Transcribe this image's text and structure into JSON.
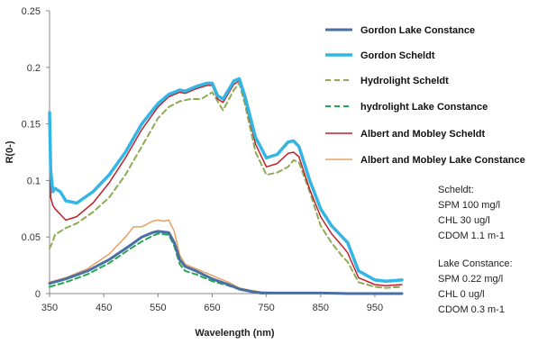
{
  "chart_data": {
    "type": "line",
    "xlabel": "Wavelength (nm)",
    "ylabel": "R(0-)",
    "xlim": [
      350,
      1000
    ],
    "ylim": [
      0,
      0.25
    ],
    "x_ticks": [
      "350",
      "450",
      "550",
      "650",
      "750",
      "850",
      "950"
    ],
    "y_ticks": [
      "0",
      "0.05",
      "0.1",
      "0.15",
      "0.2",
      "0.25"
    ],
    "grid": false,
    "legend_position": "right",
    "series": [
      {
        "name": "Gordon Lake Constance",
        "color": "#4a6fa5",
        "style": "solid",
        "width": 3,
        "x": [
          350,
          380,
          420,
          460,
          500,
          520,
          540,
          550,
          570,
          580,
          590,
          600,
          620,
          650,
          680,
          700,
          720,
          740,
          760,
          780,
          800,
          850,
          900,
          950,
          1000
        ],
        "y": [
          0.009,
          0.013,
          0.02,
          0.03,
          0.043,
          0.05,
          0.054,
          0.055,
          0.054,
          0.045,
          0.03,
          0.024,
          0.02,
          0.013,
          0.008,
          0.004,
          0.002,
          0.0005,
          0.0005,
          0.0005,
          0.0005,
          0.0005,
          0,
          0,
          0
        ]
      },
      {
        "name": "Gordon Scheldt",
        "color": "#33b5e5",
        "style": "solid",
        "width": 3.5,
        "x": [
          350,
          352,
          356,
          360,
          370,
          380,
          400,
          430,
          460,
          490,
          520,
          550,
          570,
          590,
          600,
          620,
          640,
          650,
          660,
          670,
          690,
          700,
          710,
          730,
          750,
          770,
          790,
          800,
          810,
          830,
          850,
          870,
          890,
          900,
          920,
          950,
          970,
          1000
        ],
        "y": [
          0.16,
          0.11,
          0.09,
          0.093,
          0.09,
          0.082,
          0.08,
          0.09,
          0.105,
          0.125,
          0.15,
          0.168,
          0.176,
          0.18,
          0.179,
          0.183,
          0.186,
          0.186,
          0.175,
          0.172,
          0.188,
          0.19,
          0.175,
          0.138,
          0.12,
          0.123,
          0.134,
          0.135,
          0.13,
          0.1,
          0.075,
          0.06,
          0.05,
          0.045,
          0.02,
          0.012,
          0.011,
          0.012
        ]
      },
      {
        "name": "Hydrolight Scheldt",
        "color": "#8faa55",
        "style": "dashed",
        "width": 2,
        "x": [
          350,
          355,
          360,
          380,
          400,
          430,
          460,
          490,
          520,
          550,
          570,
          590,
          610,
          630,
          650,
          660,
          670,
          690,
          700,
          710,
          730,
          750,
          770,
          790,
          800,
          810,
          830,
          850,
          870,
          890,
          900,
          920,
          950,
          970,
          1000
        ],
        "y": [
          0.04,
          0.045,
          0.052,
          0.058,
          0.062,
          0.072,
          0.085,
          0.105,
          0.13,
          0.155,
          0.165,
          0.17,
          0.172,
          0.172,
          0.178,
          0.17,
          0.162,
          0.18,
          0.186,
          0.168,
          0.125,
          0.105,
          0.107,
          0.112,
          0.118,
          0.116,
          0.09,
          0.06,
          0.045,
          0.033,
          0.028,
          0.01,
          0.006,
          0.005,
          0.006
        ]
      },
      {
        "name": "hydrolight Lake Constance",
        "color": "#22a84f",
        "style": "dashed",
        "width": 2,
        "x": [
          350,
          380,
          420,
          460,
          500,
          520,
          540,
          550,
          570,
          580,
          590,
          600,
          620,
          650,
          680,
          700,
          720,
          740,
          760,
          800,
          850,
          900,
          950,
          1000
        ],
        "y": [
          0.006,
          0.01,
          0.017,
          0.027,
          0.04,
          0.046,
          0.051,
          0.053,
          0.052,
          0.042,
          0.026,
          0.02,
          0.017,
          0.011,
          0.007,
          0.004,
          0.002,
          0.001,
          0.0005,
          0.0005,
          0.0005,
          0,
          0,
          0
        ]
      },
      {
        "name": "Albert and Mobley Scheldt",
        "color": "#c0202a",
        "style": "solid",
        "width": 1.5,
        "x": [
          350,
          352,
          356,
          360,
          370,
          380,
          400,
          430,
          460,
          490,
          520,
          550,
          570,
          590,
          600,
          620,
          640,
          650,
          660,
          670,
          690,
          700,
          710,
          730,
          750,
          770,
          790,
          800,
          810,
          830,
          850,
          870,
          890,
          900,
          920,
          950,
          970,
          1000
        ],
        "y": [
          0.155,
          0.085,
          0.078,
          0.075,
          0.07,
          0.065,
          0.068,
          0.08,
          0.098,
          0.12,
          0.145,
          0.165,
          0.174,
          0.178,
          0.177,
          0.181,
          0.184,
          0.184,
          0.172,
          0.169,
          0.185,
          0.188,
          0.172,
          0.132,
          0.112,
          0.115,
          0.124,
          0.125,
          0.121,
          0.092,
          0.068,
          0.053,
          0.042,
          0.036,
          0.014,
          0.008,
          0.007,
          0.008
        ]
      },
      {
        "name": "Albert and Mobley Lake Constance",
        "color": "#e8a060",
        "style": "solid",
        "width": 1.5,
        "x": [
          350,
          380,
          420,
          460,
          490,
          505,
          520,
          540,
          550,
          560,
          570,
          580,
          590,
          600,
          620,
          650,
          680,
          700,
          720,
          740,
          760,
          800,
          850,
          900,
          950,
          1000
        ],
        "y": [
          0.01,
          0.014,
          0.022,
          0.035,
          0.05,
          0.059,
          0.059,
          0.064,
          0.065,
          0.064,
          0.065,
          0.055,
          0.034,
          0.026,
          0.022,
          0.016,
          0.01,
          0.005,
          0.003,
          0.0015,
          0.001,
          0.001,
          0.001,
          0,
          0,
          0
        ]
      }
    ],
    "annotations": [
      [
        "Scheldt:",
        "SPM 100 mg/l",
        "CHL 30 ug/l",
        "CDOM 1.1 m-1"
      ],
      [
        "Lake Constance:",
        "SPM 0.22 mg/l",
        "CHL 0 ug/l",
        "CDOM 0.3 m-1"
      ]
    ]
  }
}
